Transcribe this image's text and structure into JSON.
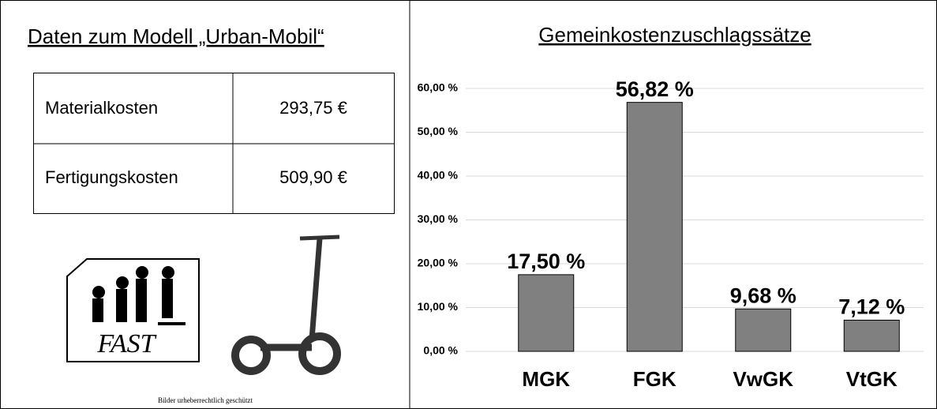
{
  "left": {
    "title": "Daten zum Modell „Urban-Mobil“",
    "table": {
      "rows": [
        [
          "Materialkosten",
          "293,75 €"
        ],
        [
          "Fertigungskosten",
          "509,90 €"
        ]
      ]
    },
    "logo_text": "FAST",
    "caption": "Bilder urheberrechtlich geschützt"
  },
  "chart_data": {
    "type": "bar",
    "title": "Gemeinkostenzuschlagssätze",
    "categories": [
      "MGK",
      "FGK",
      "VwGK",
      "VtGK"
    ],
    "values": [
      17.5,
      56.82,
      9.68,
      7.12
    ],
    "value_labels": [
      "17,50 %",
      "56,82 %",
      "9,68 %",
      "7,12 %"
    ],
    "color": "#808080",
    "ylim": [
      0,
      60
    ],
    "yticks": [
      {
        "value": 0,
        "label": "0,00 %"
      },
      {
        "value": 10,
        "label": "10,00 %"
      },
      {
        "value": 20,
        "label": "20,00 %"
      },
      {
        "value": 30,
        "label": "30,00 %"
      },
      {
        "value": 40,
        "label": "40,00 %"
      },
      {
        "value": 50,
        "label": "50,00 %"
      },
      {
        "value": 60,
        "label": "60,00 %"
      }
    ],
    "grid": true
  }
}
